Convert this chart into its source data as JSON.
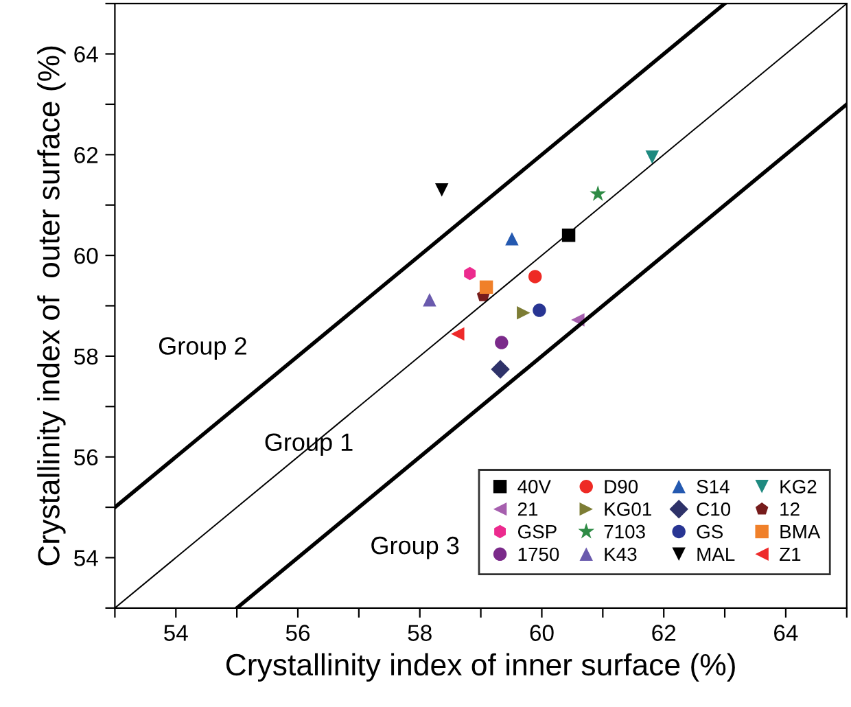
{
  "chart_data": {
    "type": "scatter",
    "xlabel": "Crystallinity index of inner surface (%)",
    "ylabel": "Crystallinity index of  outer surface (%)",
    "xlim": [
      53,
      65
    ],
    "ylim": [
      53,
      65
    ],
    "xticks": [
      {
        "value": 53,
        "label": null
      },
      54,
      {
        "value": 55,
        "label": null
      },
      56,
      {
        "value": 57,
        "label": null
      },
      58,
      {
        "value": 59,
        "label": null
      },
      60,
      {
        "value": 61,
        "label": null
      },
      62,
      {
        "value": 63,
        "label": null
      },
      64,
      {
        "value": 65,
        "label": null
      }
    ],
    "yticks": [
      {
        "value": 53,
        "label": null
      },
      54,
      {
        "value": 55,
        "label": null
      },
      56,
      {
        "value": 57,
        "label": null
      },
      58,
      {
        "value": 59,
        "label": null
      },
      60,
      {
        "value": 61,
        "label": null
      },
      62,
      {
        "value": 63,
        "label": null
      },
      64,
      {
        "value": 65,
        "label": null
      }
    ],
    "grid": false,
    "legend": "bottom right",
    "annotations": [
      "Group 2",
      {
        "text": "Group 1",
        "x": 56.18,
        "y": 56.25
      },
      "Group 3"
    ],
    "series": [
      {
        "name": "40V",
        "color": "#000000",
        "marker": "square",
        "x": [
          60.44
        ],
        "values": [
          60.4
        ]
      },
      {
        "name": "D90",
        "color": "#ee2a24",
        "marker": "circle",
        "x": [
          59.89
        ],
        "values": [
          59.58
        ]
      },
      {
        "name": "S14",
        "color": "#2459b0",
        "marker": "triangle",
        "x": [
          59.51
        ],
        "values": [
          60.33
        ]
      },
      {
        "name": "KG2",
        "color": "#1f8a80",
        "marker": "triangle-down",
        "x": [
          61.81
        ],
        "values": [
          61.95
        ]
      },
      {
        "name": "21",
        "color": "#a65fae",
        "marker": "triangle-left",
        "x": [
          60.59
        ],
        "values": [
          58.72
        ]
      },
      {
        "name": "KG01",
        "color": "#7d7d35",
        "marker": "triangle-right",
        "x": [
          59.7
        ],
        "values": [
          58.86
        ]
      },
      {
        "name": "C10",
        "color": "#2e3269",
        "marker": "diamond",
        "x": [
          59.32
        ],
        "values": [
          57.74
        ]
      },
      {
        "name": "12",
        "color": "#761c1c",
        "x": [
          59.04
        ],
        "values": [
          59.2
        ]
      },
      {
        "name": "GSP",
        "color": "#ec2a8e",
        "x": [
          58.82
        ],
        "values": [
          59.64
        ]
      },
      {
        "name": "7103",
        "color": "#2e8b45",
        "marker": "star",
        "x": [
          60.92
        ],
        "values": [
          61.22
        ]
      },
      {
        "name": "GS",
        "color": "#283593",
        "marker": "circle",
        "x": [
          59.96
        ],
        "values": [
          58.91
        ]
      },
      {
        "name": "BMA",
        "color": "#f0802a",
        "marker": "square",
        "x": [
          59.09
        ],
        "values": [
          59.37
        ]
      },
      {
        "name": "1750",
        "color": "#7b2a8a",
        "marker": "circle",
        "x": [
          59.34
        ],
        "values": [
          58.27
        ]
      },
      {
        "name": "K43",
        "color": "#6a5aad",
        "marker": "triangle",
        "x": [
          58.16
        ],
        "values": [
          59.12
        ]
      },
      {
        "name": "MAL",
        "color": "#000000",
        "marker": "triangle-down",
        "x": [
          58.36
        ],
        "values": [
          61.3
        ]
      },
      {
        "name": "Z1",
        "color": "#ee2a2a",
        "marker": "triangle-left",
        "x": [
          58.62
        ],
        "values": [
          58.44
        ]
      },
      {
        "type": "line",
        "color": "#000000",
        "line_style": "solid",
        "x": [
          53,
          63
        ],
        "values": [
          55,
          65
        ]
      },
      {
        "type": "line",
        "color": "#000000",
        "line_style": "solid",
        "x": [
          53,
          65
        ],
        "values": [
          53,
          65
        ]
      },
      {
        "type": "line",
        "color": "#000000",
        "line_style": "solid",
        "x": [
          55,
          65
        ],
        "values": [
          53,
          63
        ]
      }
    ]
  }
}
